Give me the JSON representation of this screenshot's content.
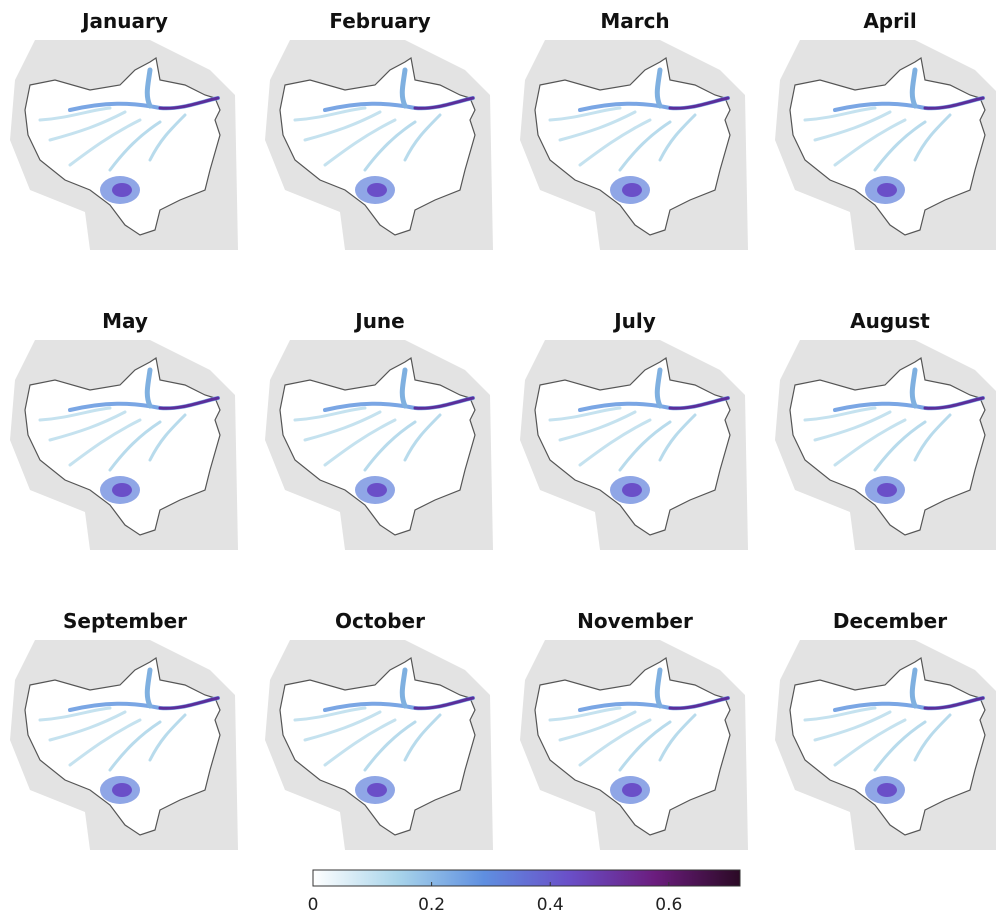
{
  "panels": [
    {
      "title": "January"
    },
    {
      "title": "February"
    },
    {
      "title": "March"
    },
    {
      "title": "April"
    },
    {
      "title": "May"
    },
    {
      "title": "June"
    },
    {
      "title": "July"
    },
    {
      "title": "August"
    },
    {
      "title": "September"
    },
    {
      "title": "October"
    },
    {
      "title": "November"
    },
    {
      "title": "December"
    }
  ],
  "colorbar": {
    "lim": [
      0,
      0.72
    ],
    "ticks": [
      0,
      0.2,
      0.4,
      0.6
    ],
    "colors": [
      "#ffffff",
      "#a8d4ea",
      "#5f8fe0",
      "#6a4fc8",
      "#6b1d7e",
      "#2b0a25"
    ]
  }
}
